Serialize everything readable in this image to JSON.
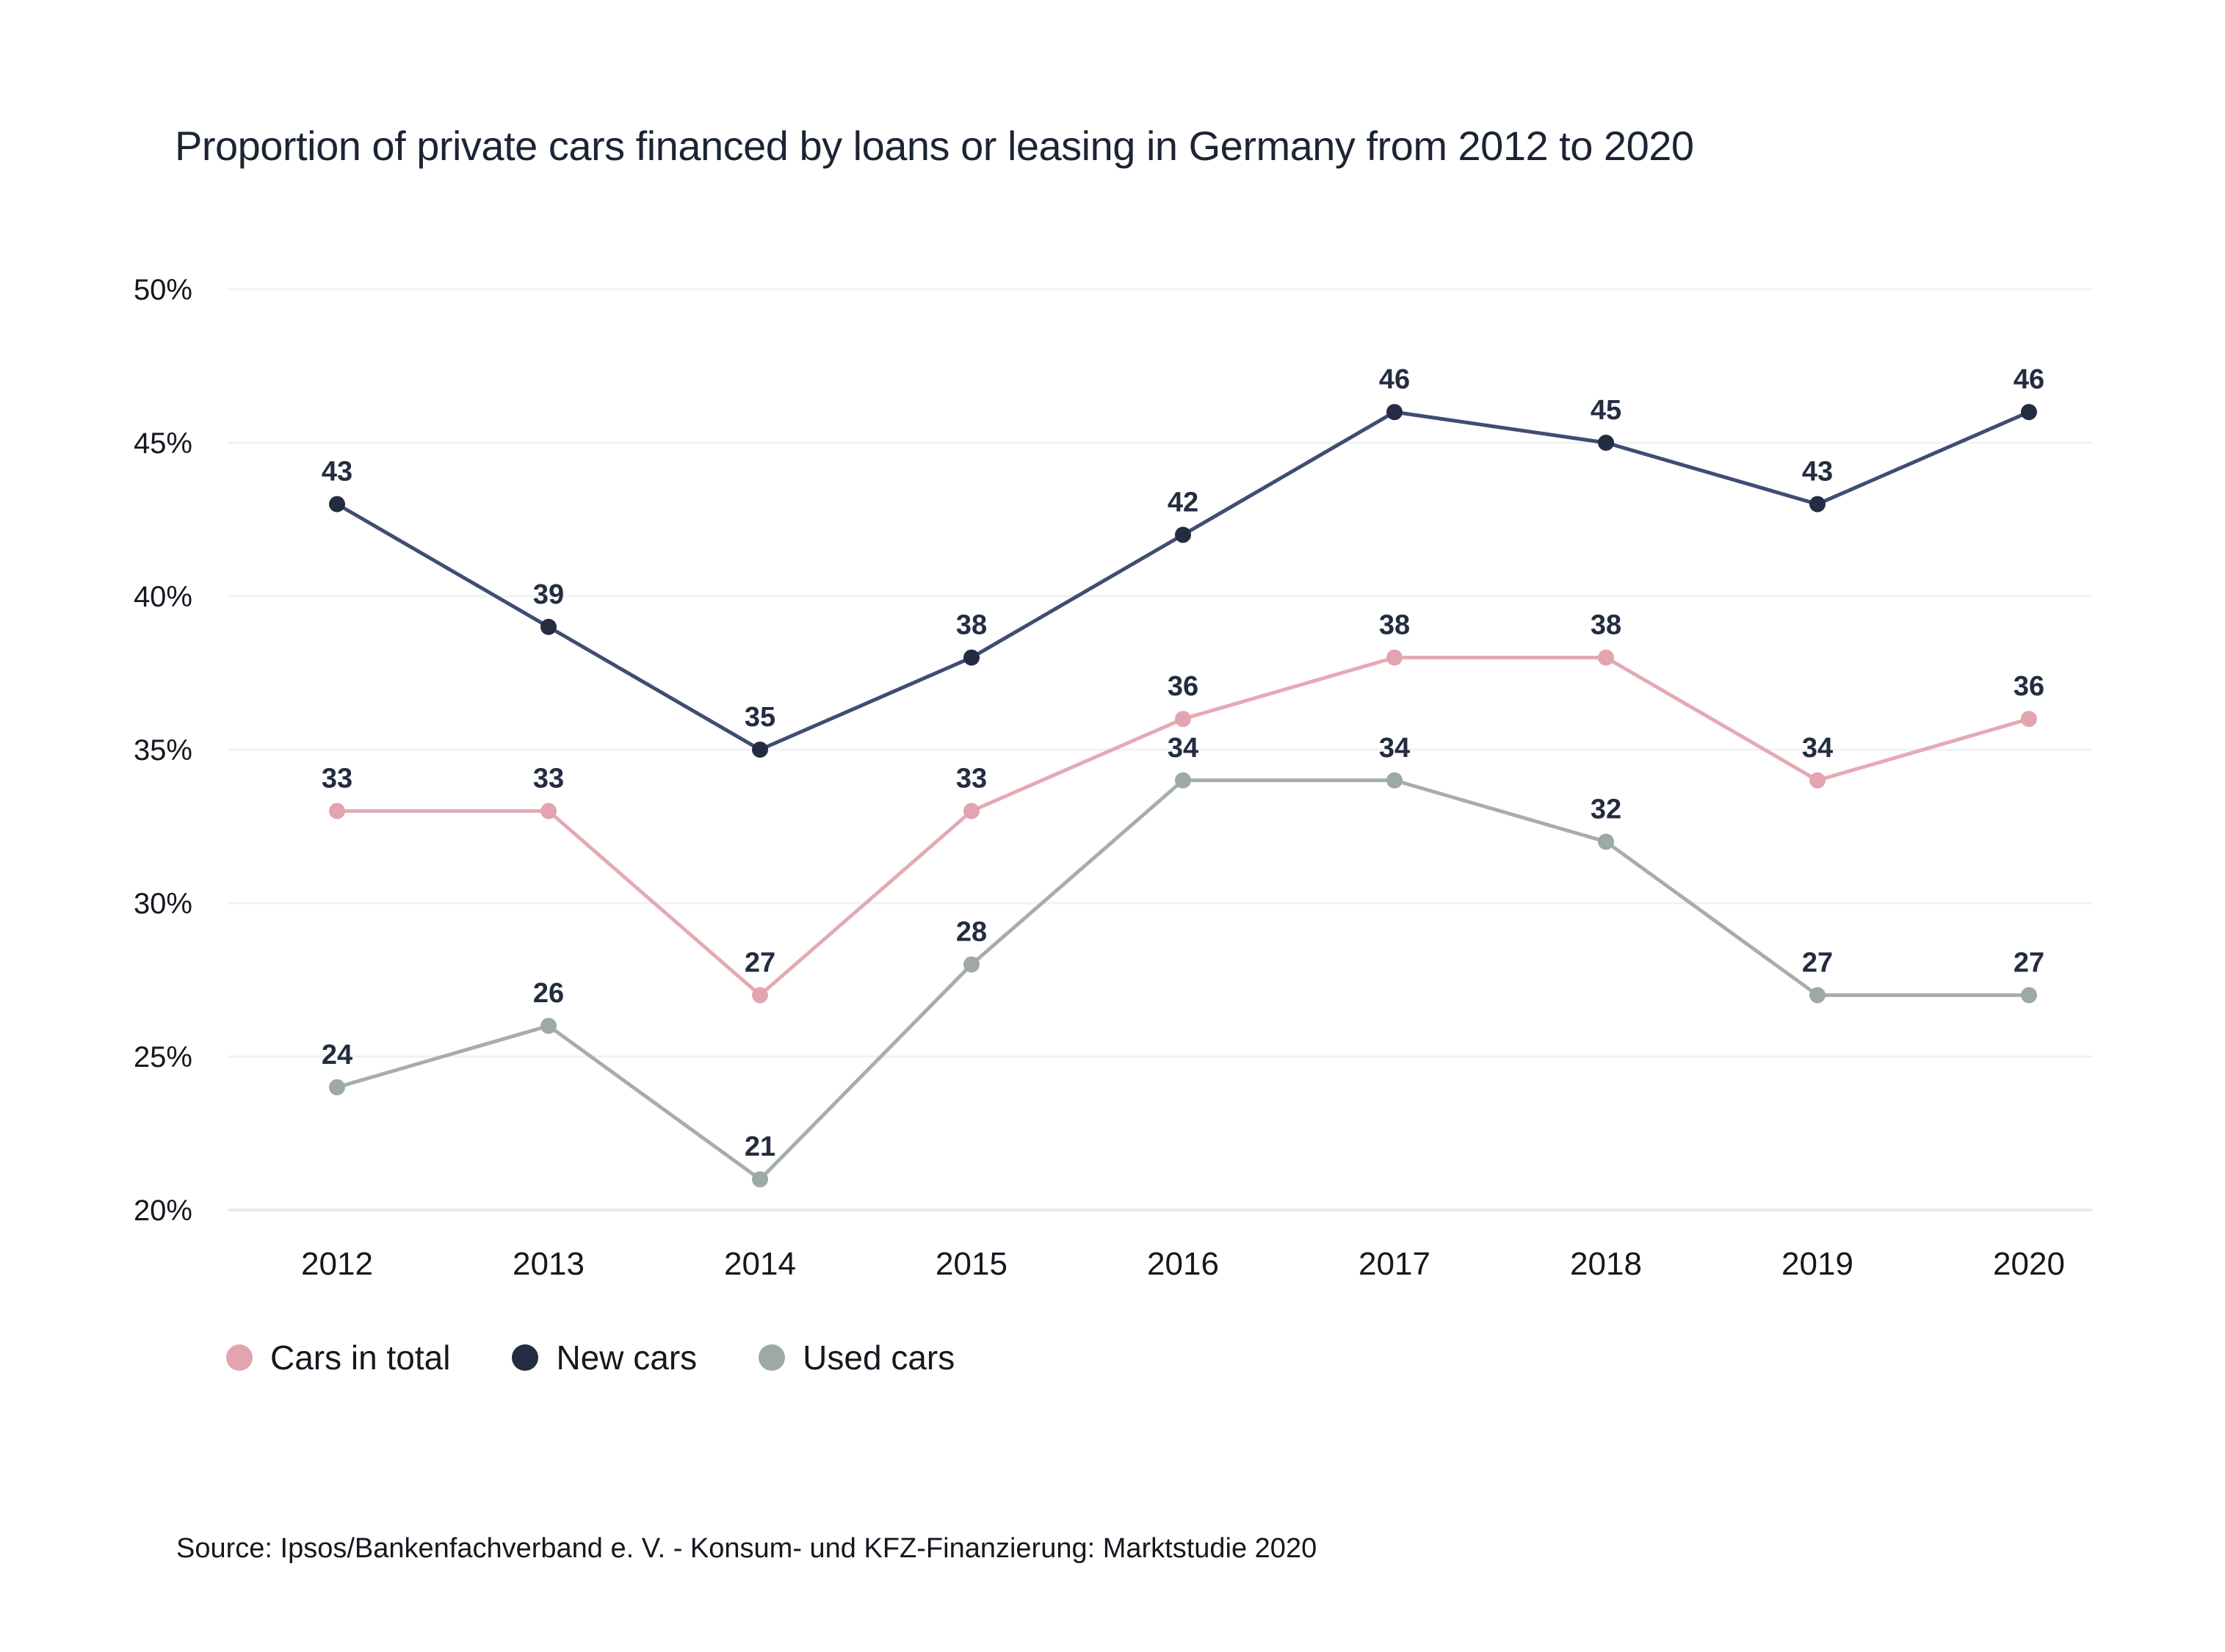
{
  "title": "Proportion of private cars financed by loans or leasing in Germany from 2012 to 2020",
  "source": "Source: Ipsos/Bankenfachverband e. V. - Konsum- und KFZ-Finanzierung: Marktstudie 2020",
  "chart_data": {
    "type": "line",
    "title": "Proportion of private cars financed by loans or leasing in Germany from 2012 to 2020",
    "categories": [
      "2012",
      "2013",
      "2014",
      "2015",
      "2016",
      "2017",
      "2018",
      "2019",
      "2020"
    ],
    "series": [
      {
        "name": "Cars in total",
        "marker_color": "#e3a4af",
        "line_color": "#e4aab3",
        "values": [
          33,
          33,
          27,
          33,
          36,
          38,
          38,
          34,
          36
        ]
      },
      {
        "name": "New cars",
        "marker_color": "#232c40",
        "line_color": "#3f4d73",
        "values": [
          43,
          39,
          35,
          38,
          42,
          46,
          45,
          43,
          46
        ]
      },
      {
        "name": "Used cars",
        "marker_color": "#9daaa3",
        "line_color": "#a6aeab",
        "values": [
          24,
          26,
          21,
          28,
          34,
          34,
          32,
          27,
          27
        ]
      }
    ],
    "y_ticks": [
      {
        "value": 50,
        "label": "50%"
      },
      {
        "value": 45,
        "label": "45%"
      },
      {
        "value": 40,
        "label": "40%"
      },
      {
        "value": 35,
        "label": "35%"
      },
      {
        "value": 30,
        "label": "30%"
      },
      {
        "value": 25,
        "label": "25%"
      },
      {
        "value": 20,
        "label": "20%"
      }
    ],
    "ylim": [
      20,
      50
    ],
    "xlabel": "",
    "ylabel": "",
    "grid": true,
    "value_labels": true,
    "legend_position": "bottom"
  },
  "legend": {
    "items": [
      {
        "label": "Cars in total",
        "color": "#e3a4af"
      },
      {
        "label": "New cars",
        "color": "#232c40"
      },
      {
        "label": "Used cars",
        "color": "#9daaa3"
      }
    ]
  },
  "style_colors": {
    "value_label": "#232c40",
    "axis_label": "#14181f",
    "gridline": "#f1f2f3",
    "baseline": "#e9ebed",
    "background": "#ffffff"
  }
}
